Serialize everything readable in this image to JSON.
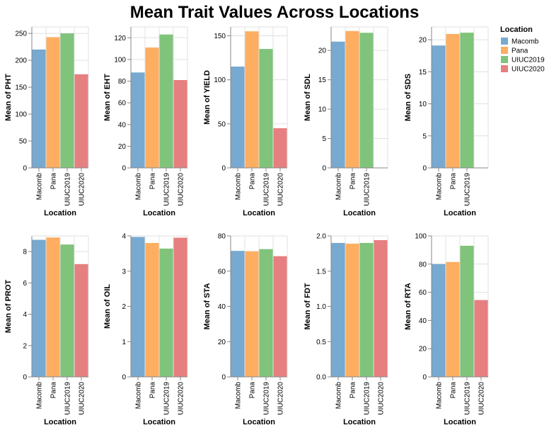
{
  "title": "Mean Trait Values Across Locations",
  "legend": {
    "title": "Location",
    "entries": [
      "Macomb",
      "Pana",
      "UIUC2019",
      "UIUC2020"
    ],
    "colors": [
      "#78a9d0",
      "#fdae61",
      "#7fc47a",
      "#e67f80"
    ],
    "placement": "top-right"
  },
  "chart_data": [
    {
      "type": "bar",
      "xlabel": "Location",
      "ylabel": "Mean of PHT",
      "categories": [
        "Macomb",
        "Pana",
        "UIUC2019",
        "UIUC2020"
      ],
      "values": [
        220,
        243,
        250,
        174
      ],
      "ylim": [
        0,
        262
      ],
      "yticks": [
        0,
        50,
        100,
        150,
        200,
        250
      ],
      "ytick_labels": [
        "0",
        "50",
        "100",
        "150",
        "200",
        "250"
      ]
    },
    {
      "type": "bar",
      "xlabel": "Location",
      "ylabel": "Mean of EHT",
      "categories": [
        "Macomb",
        "Pana",
        "UIUC2019",
        "UIUC2020"
      ],
      "values": [
        88,
        111,
        123,
        81
      ],
      "ylim": [
        0,
        130
      ],
      "yticks": [
        0,
        20,
        40,
        60,
        80,
        100,
        120
      ],
      "ytick_labels": [
        "0",
        "20",
        "40",
        "60",
        "80",
        "100",
        "120"
      ]
    },
    {
      "type": "bar",
      "xlabel": "Location",
      "ylabel": "Mean of YIELD",
      "categories": [
        "Macomb",
        "Pana",
        "UIUC2019",
        "UIUC2020"
      ],
      "values": [
        115,
        155,
        135,
        45
      ],
      "ylim": [
        0,
        160
      ],
      "yticks": [
        0,
        50,
        100,
        150
      ],
      "ytick_labels": [
        "0",
        "50",
        "100",
        "150"
      ]
    },
    {
      "type": "bar",
      "xlabel": "Location",
      "ylabel": "Mean of SDL",
      "categories": [
        "Macomb",
        "Pana",
        "UIUC2019"
      ],
      "values": [
        21.5,
        23.3,
        23.0
      ],
      "ylim": [
        0,
        24
      ],
      "yticks": [
        0,
        5,
        10,
        15,
        20
      ],
      "ytick_labels": [
        "0",
        "5",
        "10",
        "15",
        "20"
      ]
    },
    {
      "type": "bar",
      "xlabel": "Location",
      "ylabel": "Mean of SDS",
      "categories": [
        "Macomb",
        "Pana",
        "UIUC2019"
      ],
      "values": [
        19.1,
        20.9,
        21.1
      ],
      "ylim": [
        0,
        22
      ],
      "yticks": [
        0,
        5,
        10,
        15,
        20
      ],
      "ytick_labels": [
        "0",
        "5",
        "10",
        "15",
        "20"
      ]
    },
    {
      "type": "bar",
      "xlabel": "Location",
      "ylabel": "Mean of PROT",
      "categories": [
        "Macomb",
        "Pana",
        "UIUC2019",
        "UIUC2020"
      ],
      "values": [
        8.75,
        8.9,
        8.45,
        7.2
      ],
      "ylim": [
        0,
        9
      ],
      "yticks": [
        0,
        2,
        4,
        6,
        8
      ],
      "ytick_labels": [
        "0",
        "2",
        "4",
        "6",
        "8"
      ]
    },
    {
      "type": "bar",
      "xlabel": "Location",
      "ylabel": "Mean of OIL",
      "categories": [
        "Macomb",
        "Pana",
        "UIUC2019",
        "UIUC2020"
      ],
      "values": [
        3.97,
        3.8,
        3.64,
        3.95
      ],
      "ylim": [
        0,
        4
      ],
      "yticks": [
        0,
        1,
        2,
        3,
        4
      ],
      "ytick_labels": [
        "0",
        "1",
        "2",
        "3",
        "4"
      ]
    },
    {
      "type": "bar",
      "xlabel": "Location",
      "ylabel": "Mean of STA",
      "categories": [
        "Macomb",
        "Pana",
        "UIUC2019",
        "UIUC2020"
      ],
      "values": [
        71.5,
        71.3,
        72.5,
        68.5
      ],
      "ylim": [
        0,
        80
      ],
      "yticks": [
        0,
        20,
        40,
        60,
        80
      ],
      "ytick_labels": [
        "0",
        "20",
        "40",
        "60",
        "80"
      ]
    },
    {
      "type": "bar",
      "xlabel": "Location",
      "ylabel": "Mean of FDT",
      "categories": [
        "Macomb",
        "Pana",
        "UIUC2019",
        "UIUC2020"
      ],
      "values": [
        1.9,
        1.89,
        1.9,
        1.94
      ],
      "ylim": [
        0,
        2
      ],
      "yticks": [
        0,
        0.5,
        1,
        1.5,
        2
      ],
      "ytick_labels": [
        "0.0",
        "0.5",
        "1.0",
        "1.5",
        "2.0"
      ]
    },
    {
      "type": "bar",
      "xlabel": "Location",
      "ylabel": "Mean of RTA",
      "categories": [
        "Macomb",
        "Pana",
        "UIUC2019",
        "UIUC2020"
      ],
      "values": [
        80,
        81.5,
        93,
        54.5
      ],
      "ylim": [
        0,
        100
      ],
      "yticks": [
        0,
        20,
        40,
        60,
        80,
        100
      ],
      "ytick_labels": [
        "0",
        "20",
        "40",
        "60",
        "80",
        "100"
      ]
    }
  ]
}
